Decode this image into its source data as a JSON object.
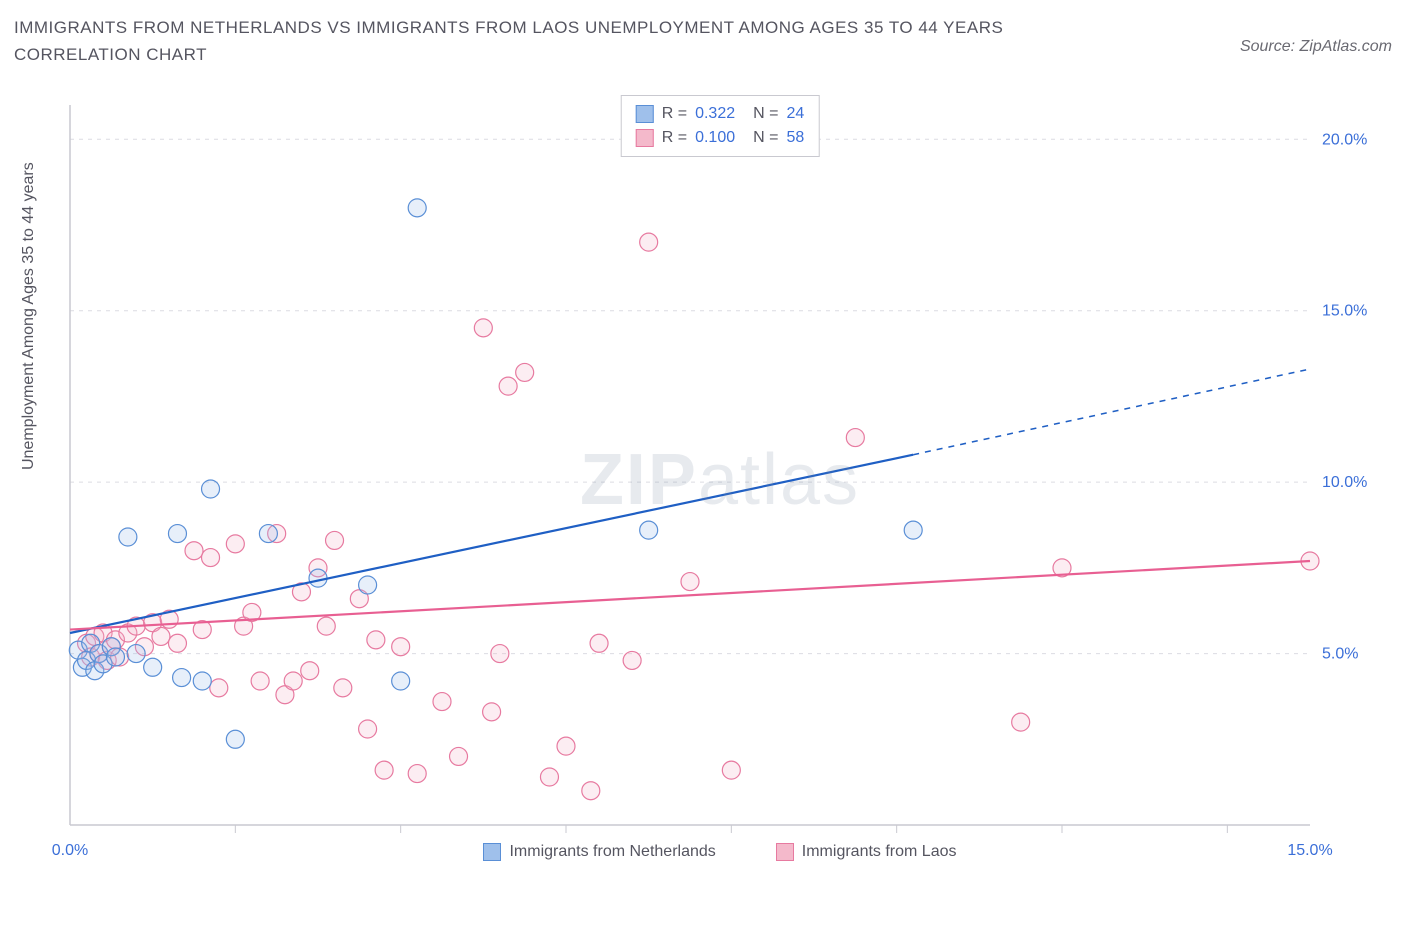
{
  "title": "IMMIGRANTS FROM NETHERLANDS VS IMMIGRANTS FROM LAOS UNEMPLOYMENT AMONG AGES 35 TO 44 YEARS CORRELATION CHART",
  "source_label": "Source: ZipAtlas.com",
  "ylabel": "Unemployment Among Ages 35 to 44 years",
  "watermark": {
    "bold": "ZIP",
    "light": "atlas"
  },
  "chart": {
    "type": "scatter",
    "background_color": "#ffffff",
    "grid_color": "#dcdce2",
    "axis_line_color": "#c9c9d0",
    "tick_label_color": "#3b6fd8",
    "label_color": "#555560",
    "title_fontsize": 17,
    "label_fontsize": 16,
    "tick_fontsize": 16,
    "xlim": [
      0,
      15
    ],
    "ylim": [
      0,
      21
    ],
    "xticks": [
      0,
      5,
      10,
      15
    ],
    "xtick_labels": [
      "0.0%",
      "",
      "",
      "15.0%"
    ],
    "xtick_minor": [
      2,
      4,
      6,
      8,
      10,
      12,
      14
    ],
    "yticks": [
      5,
      10,
      15,
      20
    ],
    "ytick_labels": [
      "5.0%",
      "10.0%",
      "15.0%",
      "20.0%"
    ],
    "marker_radius": 9,
    "marker_stroke_width": 1.2,
    "marker_fill_opacity": 0.25,
    "line_width": 2.2
  },
  "series": [
    {
      "id": "netherlands",
      "label": "Immigrants from Netherlands",
      "color_fill": "#9fc0eb",
      "color_stroke": "#5a8fd6",
      "line_color": "#1f5fc4",
      "stats": {
        "R": "0.322",
        "N": "24"
      },
      "trend": {
        "x1": 0,
        "y1": 5.6,
        "x2": 10.2,
        "y2": 10.8,
        "dash_to_x": 15,
        "dash_to_y": 13.3
      },
      "points": [
        [
          0.1,
          5.1
        ],
        [
          0.15,
          4.6
        ],
        [
          0.2,
          4.8
        ],
        [
          0.25,
          5.3
        ],
        [
          0.3,
          4.5
        ],
        [
          0.35,
          5.0
        ],
        [
          0.4,
          4.7
        ],
        [
          0.5,
          5.2
        ],
        [
          0.55,
          4.9
        ],
        [
          0.7,
          8.4
        ],
        [
          0.8,
          5.0
        ],
        [
          1.0,
          4.6
        ],
        [
          1.3,
          8.5
        ],
        [
          1.35,
          4.3
        ],
        [
          1.6,
          4.2
        ],
        [
          1.7,
          9.8
        ],
        [
          2.0,
          2.5
        ],
        [
          2.4,
          8.5
        ],
        [
          3.0,
          7.2
        ],
        [
          3.6,
          7.0
        ],
        [
          4.0,
          4.2
        ],
        [
          4.2,
          18.0
        ],
        [
          7.0,
          8.6
        ],
        [
          10.2,
          8.6
        ]
      ]
    },
    {
      "id": "laos",
      "label": "Immigrants from Laos",
      "color_fill": "#f4b9cb",
      "color_stroke": "#e77aa0",
      "line_color": "#e85f92",
      "stats": {
        "R": "0.100",
        "N": "58"
      },
      "trend": {
        "x1": 0,
        "y1": 5.7,
        "x2": 15,
        "y2": 7.7
      },
      "points": [
        [
          0.2,
          5.3
        ],
        [
          0.25,
          4.9
        ],
        [
          0.3,
          5.5
        ],
        [
          0.35,
          5.0
        ],
        [
          0.4,
          5.6
        ],
        [
          0.45,
          4.8
        ],
        [
          0.5,
          5.2
        ],
        [
          0.55,
          5.4
        ],
        [
          0.6,
          4.9
        ],
        [
          0.7,
          5.6
        ],
        [
          0.8,
          5.8
        ],
        [
          0.9,
          5.2
        ],
        [
          1.0,
          5.9
        ],
        [
          1.1,
          5.5
        ],
        [
          1.2,
          6.0
        ],
        [
          1.3,
          5.3
        ],
        [
          1.5,
          8.0
        ],
        [
          1.6,
          5.7
        ],
        [
          1.7,
          7.8
        ],
        [
          1.8,
          4.0
        ],
        [
          2.0,
          8.2
        ],
        [
          2.1,
          5.8
        ],
        [
          2.2,
          6.2
        ],
        [
          2.3,
          4.2
        ],
        [
          2.5,
          8.5
        ],
        [
          2.6,
          3.8
        ],
        [
          2.7,
          4.2
        ],
        [
          2.8,
          6.8
        ],
        [
          2.9,
          4.5
        ],
        [
          3.0,
          7.5
        ],
        [
          3.1,
          5.8
        ],
        [
          3.2,
          8.3
        ],
        [
          3.3,
          4.0
        ],
        [
          3.5,
          6.6
        ],
        [
          3.6,
          2.8
        ],
        [
          3.7,
          5.4
        ],
        [
          3.8,
          1.6
        ],
        [
          4.0,
          5.2
        ],
        [
          4.2,
          1.5
        ],
        [
          4.5,
          3.6
        ],
        [
          4.7,
          2.0
        ],
        [
          5.0,
          14.5
        ],
        [
          5.1,
          3.3
        ],
        [
          5.2,
          5.0
        ],
        [
          5.3,
          12.8
        ],
        [
          5.5,
          13.2
        ],
        [
          5.8,
          1.4
        ],
        [
          6.0,
          2.3
        ],
        [
          6.3,
          1.0
        ],
        [
          6.4,
          5.3
        ],
        [
          6.8,
          4.8
        ],
        [
          7.0,
          17.0
        ],
        [
          7.5,
          7.1
        ],
        [
          8.0,
          1.6
        ],
        [
          9.5,
          11.3
        ],
        [
          11.5,
          3.0
        ],
        [
          12.0,
          7.5
        ],
        [
          15.0,
          7.7
        ]
      ]
    }
  ],
  "bottom_legend": [
    {
      "swatch_fill": "#9fc0eb",
      "swatch_stroke": "#5a8fd6",
      "label": "Immigrants from Netherlands"
    },
    {
      "swatch_fill": "#f4b9cb",
      "swatch_stroke": "#e77aa0",
      "label": "Immigrants from Laos"
    }
  ]
}
